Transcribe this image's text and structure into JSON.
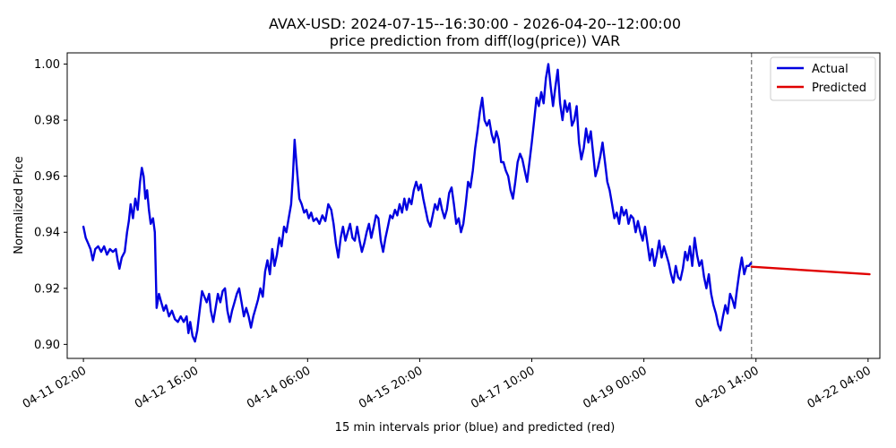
{
  "chart_data": {
    "type": "line",
    "title": "AVAX-USD: 2024-07-15--16:30:00 - 2026-04-20--12:00:00",
    "subtitle": "price prediction from diff(log(price)) VAR",
    "xlabel": "15 min intervals prior (blue) and predicted (red)",
    "ylabel": "Normalized Price",
    "ylim": [
      0.895,
      1.004
    ],
    "yticks": [
      0.9,
      0.92,
      0.94,
      0.96,
      0.98,
      1.0
    ],
    "ytick_labels": [
      "0.90",
      "0.92",
      "0.94",
      "0.96",
      "0.98",
      "1.00"
    ],
    "xlim_hours": [
      -5.5,
      270
    ],
    "xticks_hours": [
      0,
      38,
      76,
      114,
      152,
      190,
      228,
      266
    ],
    "xtick_labels": [
      "04-11 02:00",
      "04-12 16:00",
      "04-14 06:00",
      "04-15 20:00",
      "04-17 10:00",
      "04-19 00:00",
      "04-20 14:00",
      "04-22 04:00"
    ],
    "divider_hours": 226.5,
    "grid": false,
    "legend_position": "top-right",
    "series": [
      {
        "name": "Actual",
        "color": "#0000e0",
        "points": [
          [
            0.0,
            0.942
          ],
          [
            0.8,
            0.938
          ],
          [
            1.6,
            0.936
          ],
          [
            2.4,
            0.934
          ],
          [
            3.2,
            0.93
          ],
          [
            4.0,
            0.934
          ],
          [
            5.0,
            0.935
          ],
          [
            6.0,
            0.933
          ],
          [
            7.0,
            0.935
          ],
          [
            8.0,
            0.932
          ],
          [
            9.0,
            0.934
          ],
          [
            10.0,
            0.933
          ],
          [
            11.0,
            0.934
          ],
          [
            11.6,
            0.93
          ],
          [
            12.2,
            0.927
          ],
          [
            13.0,
            0.931
          ],
          [
            14.0,
            0.933
          ],
          [
            14.8,
            0.94
          ],
          [
            15.4,
            0.944
          ],
          [
            16.0,
            0.95
          ],
          [
            16.8,
            0.945
          ],
          [
            17.6,
            0.952
          ],
          [
            18.4,
            0.948
          ],
          [
            19.2,
            0.958
          ],
          [
            19.8,
            0.963
          ],
          [
            20.4,
            0.96
          ],
          [
            21.0,
            0.952
          ],
          [
            21.6,
            0.955
          ],
          [
            22.2,
            0.948
          ],
          [
            22.8,
            0.943
          ],
          [
            23.6,
            0.945
          ],
          [
            24.2,
            0.94
          ],
          [
            24.8,
            0.913
          ],
          [
            25.6,
            0.918
          ],
          [
            26.4,
            0.915
          ],
          [
            27.2,
            0.912
          ],
          [
            28.0,
            0.914
          ],
          [
            29.0,
            0.91
          ],
          [
            30.0,
            0.912
          ],
          [
            31.0,
            0.909
          ],
          [
            32.0,
            0.908
          ],
          [
            33.0,
            0.91
          ],
          [
            34.0,
            0.908
          ],
          [
            35.0,
            0.91
          ],
          [
            35.6,
            0.904
          ],
          [
            36.2,
            0.908
          ],
          [
            37.0,
            0.903
          ],
          [
            37.8,
            0.901
          ],
          [
            38.6,
            0.905
          ],
          [
            39.4,
            0.912
          ],
          [
            40.2,
            0.919
          ],
          [
            41.0,
            0.917
          ],
          [
            41.8,
            0.915
          ],
          [
            42.6,
            0.918
          ],
          [
            43.2,
            0.912
          ],
          [
            44.0,
            0.908
          ],
          [
            44.8,
            0.913
          ],
          [
            45.6,
            0.918
          ],
          [
            46.4,
            0.915
          ],
          [
            47.2,
            0.919
          ],
          [
            48.0,
            0.92
          ],
          [
            48.8,
            0.912
          ],
          [
            49.6,
            0.908
          ],
          [
            50.4,
            0.912
          ],
          [
            51.2,
            0.915
          ],
          [
            52.0,
            0.918
          ],
          [
            52.8,
            0.92
          ],
          [
            53.6,
            0.915
          ],
          [
            54.4,
            0.91
          ],
          [
            55.2,
            0.913
          ],
          [
            56.0,
            0.91
          ],
          [
            56.8,
            0.906
          ],
          [
            57.6,
            0.91
          ],
          [
            58.4,
            0.913
          ],
          [
            59.2,
            0.916
          ],
          [
            60.0,
            0.92
          ],
          [
            60.8,
            0.917
          ],
          [
            61.6,
            0.926
          ],
          [
            62.4,
            0.93
          ],
          [
            63.2,
            0.925
          ],
          [
            64.0,
            0.934
          ],
          [
            64.8,
            0.928
          ],
          [
            65.6,
            0.932
          ],
          [
            66.4,
            0.938
          ],
          [
            67.2,
            0.935
          ],
          [
            68.0,
            0.942
          ],
          [
            68.8,
            0.94
          ],
          [
            69.6,
            0.945
          ],
          [
            70.4,
            0.95
          ],
          [
            71.0,
            0.96
          ],
          [
            71.6,
            0.973
          ],
          [
            72.4,
            0.962
          ],
          [
            73.2,
            0.952
          ],
          [
            74.0,
            0.95
          ],
          [
            74.8,
            0.947
          ],
          [
            75.6,
            0.948
          ],
          [
            76.4,
            0.945
          ],
          [
            77.2,
            0.947
          ],
          [
            78.0,
            0.944
          ],
          [
            79.0,
            0.945
          ],
          [
            80.0,
            0.943
          ],
          [
            81.0,
            0.946
          ],
          [
            82.0,
            0.944
          ],
          [
            83.0,
            0.95
          ],
          [
            84.0,
            0.948
          ],
          [
            84.8,
            0.943
          ],
          [
            85.6,
            0.936
          ],
          [
            86.4,
            0.931
          ],
          [
            87.2,
            0.938
          ],
          [
            88.0,
            0.942
          ],
          [
            88.8,
            0.937
          ],
          [
            89.6,
            0.94
          ],
          [
            90.4,
            0.943
          ],
          [
            91.2,
            0.938
          ],
          [
            92.0,
            0.937
          ],
          [
            92.8,
            0.942
          ],
          [
            93.6,
            0.937
          ],
          [
            94.4,
            0.933
          ],
          [
            95.2,
            0.936
          ],
          [
            96.0,
            0.94
          ],
          [
            96.8,
            0.943
          ],
          [
            97.6,
            0.938
          ],
          [
            98.4,
            0.942
          ],
          [
            99.2,
            0.946
          ],
          [
            100.0,
            0.945
          ],
          [
            100.8,
            0.937
          ],
          [
            101.6,
            0.933
          ],
          [
            102.4,
            0.938
          ],
          [
            103.2,
            0.942
          ],
          [
            104.0,
            0.946
          ],
          [
            104.8,
            0.945
          ],
          [
            105.6,
            0.948
          ],
          [
            106.4,
            0.946
          ],
          [
            107.2,
            0.95
          ],
          [
            108.0,
            0.947
          ],
          [
            108.8,
            0.952
          ],
          [
            109.6,
            0.948
          ],
          [
            110.4,
            0.952
          ],
          [
            111.2,
            0.95
          ],
          [
            112.0,
            0.955
          ],
          [
            112.8,
            0.958
          ],
          [
            113.6,
            0.955
          ],
          [
            114.4,
            0.957
          ],
          [
            115.2,
            0.952
          ],
          [
            116.0,
            0.948
          ],
          [
            116.8,
            0.944
          ],
          [
            117.6,
            0.942
          ],
          [
            118.4,
            0.946
          ],
          [
            119.2,
            0.95
          ],
          [
            120.0,
            0.948
          ],
          [
            120.8,
            0.952
          ],
          [
            121.6,
            0.948
          ],
          [
            122.4,
            0.945
          ],
          [
            123.2,
            0.948
          ],
          [
            124.0,
            0.954
          ],
          [
            124.8,
            0.956
          ],
          [
            125.6,
            0.95
          ],
          [
            126.4,
            0.943
          ],
          [
            127.2,
            0.945
          ],
          [
            128.0,
            0.94
          ],
          [
            128.8,
            0.943
          ],
          [
            129.6,
            0.95
          ],
          [
            130.4,
            0.958
          ],
          [
            131.2,
            0.956
          ],
          [
            132.0,
            0.962
          ],
          [
            132.8,
            0.97
          ],
          [
            133.6,
            0.976
          ],
          [
            134.4,
            0.983
          ],
          [
            135.2,
            0.988
          ],
          [
            136.0,
            0.98
          ],
          [
            136.8,
            0.978
          ],
          [
            137.6,
            0.98
          ],
          [
            138.4,
            0.975
          ],
          [
            139.2,
            0.972
          ],
          [
            140.0,
            0.976
          ],
          [
            140.8,
            0.973
          ],
          [
            141.6,
            0.965
          ],
          [
            142.4,
            0.965
          ],
          [
            143.2,
            0.962
          ],
          [
            144.0,
            0.96
          ],
          [
            144.8,
            0.955
          ],
          [
            145.6,
            0.952
          ],
          [
            146.4,
            0.958
          ],
          [
            147.2,
            0.965
          ],
          [
            148.0,
            0.968
          ],
          [
            148.8,
            0.966
          ],
          [
            149.6,
            0.962
          ],
          [
            150.4,
            0.958
          ],
          [
            151.2,
            0.965
          ],
          [
            152.0,
            0.972
          ],
          [
            152.8,
            0.98
          ],
          [
            153.6,
            0.988
          ],
          [
            154.4,
            0.985
          ],
          [
            155.2,
            0.99
          ],
          [
            156.0,
            0.986
          ],
          [
            156.8,
            0.995
          ],
          [
            157.6,
            1.0
          ],
          [
            158.4,
            0.992
          ],
          [
            159.2,
            0.985
          ],
          [
            160.0,
            0.992
          ],
          [
            160.8,
            0.998
          ],
          [
            161.6,
            0.986
          ],
          [
            162.4,
            0.98
          ],
          [
            163.2,
            0.987
          ],
          [
            164.0,
            0.983
          ],
          [
            164.8,
            0.986
          ],
          [
            165.6,
            0.978
          ],
          [
            166.4,
            0.98
          ],
          [
            167.2,
            0.985
          ],
          [
            168.0,
            0.972
          ],
          [
            168.8,
            0.966
          ],
          [
            169.6,
            0.97
          ],
          [
            170.4,
            0.977
          ],
          [
            171.2,
            0.972
          ],
          [
            172.0,
            0.976
          ],
          [
            172.8,
            0.968
          ],
          [
            173.6,
            0.96
          ],
          [
            174.4,
            0.963
          ],
          [
            175.2,
            0.967
          ],
          [
            176.0,
            0.972
          ],
          [
            176.8,
            0.965
          ],
          [
            177.6,
            0.958
          ],
          [
            178.4,
            0.955
          ],
          [
            179.2,
            0.95
          ],
          [
            180.0,
            0.945
          ],
          [
            180.8,
            0.947
          ],
          [
            181.6,
            0.943
          ],
          [
            182.4,
            0.949
          ],
          [
            183.2,
            0.946
          ],
          [
            184.0,
            0.948
          ],
          [
            184.8,
            0.943
          ],
          [
            185.6,
            0.946
          ],
          [
            186.4,
            0.945
          ],
          [
            187.2,
            0.94
          ],
          [
            188.0,
            0.944
          ],
          [
            188.8,
            0.94
          ],
          [
            189.6,
            0.937
          ],
          [
            190.4,
            0.942
          ],
          [
            191.2,
            0.936
          ],
          [
            192.0,
            0.93
          ],
          [
            192.8,
            0.934
          ],
          [
            193.6,
            0.928
          ],
          [
            194.4,
            0.932
          ],
          [
            195.2,
            0.937
          ],
          [
            196.0,
            0.931
          ],
          [
            196.8,
            0.935
          ],
          [
            197.6,
            0.932
          ],
          [
            198.4,
            0.929
          ],
          [
            199.2,
            0.925
          ],
          [
            200.0,
            0.922
          ],
          [
            200.8,
            0.928
          ],
          [
            201.6,
            0.924
          ],
          [
            202.4,
            0.923
          ],
          [
            203.2,
            0.927
          ],
          [
            204.0,
            0.933
          ],
          [
            204.8,
            0.93
          ],
          [
            205.6,
            0.935
          ],
          [
            206.4,
            0.928
          ],
          [
            207.2,
            0.938
          ],
          [
            208.0,
            0.932
          ],
          [
            208.8,
            0.928
          ],
          [
            209.6,
            0.93
          ],
          [
            210.4,
            0.924
          ],
          [
            211.2,
            0.92
          ],
          [
            212.0,
            0.925
          ],
          [
            212.8,
            0.918
          ],
          [
            213.6,
            0.914
          ],
          [
            214.4,
            0.911
          ],
          [
            215.2,
            0.907
          ],
          [
            216.0,
            0.905
          ],
          [
            216.8,
            0.91
          ],
          [
            217.6,
            0.914
          ],
          [
            218.4,
            0.911
          ],
          [
            219.2,
            0.918
          ],
          [
            220.0,
            0.916
          ],
          [
            220.8,
            0.913
          ],
          [
            221.6,
            0.92
          ],
          [
            222.4,
            0.926
          ],
          [
            223.2,
            0.931
          ],
          [
            224.0,
            0.925
          ],
          [
            224.8,
            0.928
          ],
          [
            225.6,
            0.928
          ],
          [
            226.3,
            0.929
          ]
        ]
      },
      {
        "name": "Predicted",
        "color": "#e00000",
        "points": [
          [
            226.5,
            0.9277
          ],
          [
            266.5,
            0.925
          ]
        ]
      }
    ]
  }
}
